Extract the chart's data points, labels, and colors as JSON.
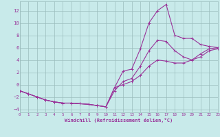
{
  "background_color": "#c8eaea",
  "grid_color": "#9bbdbd",
  "line_color": "#993399",
  "xlabel": "Windchill (Refroidissement éolien,°C)",
  "xlim": [
    0,
    23
  ],
  "ylim": [
    -4.5,
    13.5
  ],
  "xticks": [
    0,
    1,
    2,
    3,
    4,
    5,
    6,
    7,
    8,
    9,
    10,
    11,
    12,
    13,
    14,
    15,
    16,
    17,
    18,
    19,
    20,
    21,
    22,
    23
  ],
  "yticks": [
    -4,
    -2,
    0,
    2,
    4,
    6,
    8,
    10,
    12
  ],
  "curve1_x": [
    0,
    1,
    2,
    3,
    4,
    5,
    6,
    7,
    8,
    9,
    10,
    11,
    12,
    13,
    14,
    15,
    16,
    17,
    18,
    19,
    20,
    21,
    22,
    23
  ],
  "curve1_y": [
    -1.0,
    -1.5,
    -2.0,
    -2.5,
    -2.8,
    -3.0,
    -3.0,
    -3.1,
    -3.2,
    -3.4,
    -3.6,
    -0.5,
    2.2,
    2.5,
    5.8,
    10.0,
    12.0,
    13.0,
    8.0,
    7.5,
    7.5,
    6.5,
    6.2,
    6.0
  ],
  "curve2_x": [
    0,
    1,
    2,
    3,
    4,
    5,
    6,
    7,
    8,
    9,
    10,
    11,
    12,
    13,
    14,
    15,
    16,
    17,
    18,
    19,
    20,
    21,
    22,
    23
  ],
  "curve2_y": [
    -1.0,
    -1.5,
    -2.0,
    -2.5,
    -2.8,
    -3.0,
    -3.0,
    -3.1,
    -3.2,
    -3.4,
    -3.6,
    -1.0,
    0.5,
    1.0,
    3.0,
    5.5,
    7.2,
    7.0,
    5.5,
    4.5,
    4.0,
    4.5,
    5.5,
    5.8
  ],
  "curve3_x": [
    0,
    1,
    2,
    3,
    4,
    5,
    6,
    7,
    8,
    9,
    10,
    11,
    12,
    13,
    14,
    15,
    16,
    17,
    18,
    19,
    20,
    21,
    22,
    23
  ],
  "curve3_y": [
    -1.0,
    -1.5,
    -2.0,
    -2.5,
    -2.8,
    -3.0,
    -3.0,
    -3.1,
    -3.2,
    -3.4,
    -3.6,
    -0.5,
    0.0,
    0.5,
    1.5,
    3.0,
    4.0,
    3.8,
    3.5,
    3.5,
    4.0,
    5.0,
    5.8,
    6.0
  ]
}
